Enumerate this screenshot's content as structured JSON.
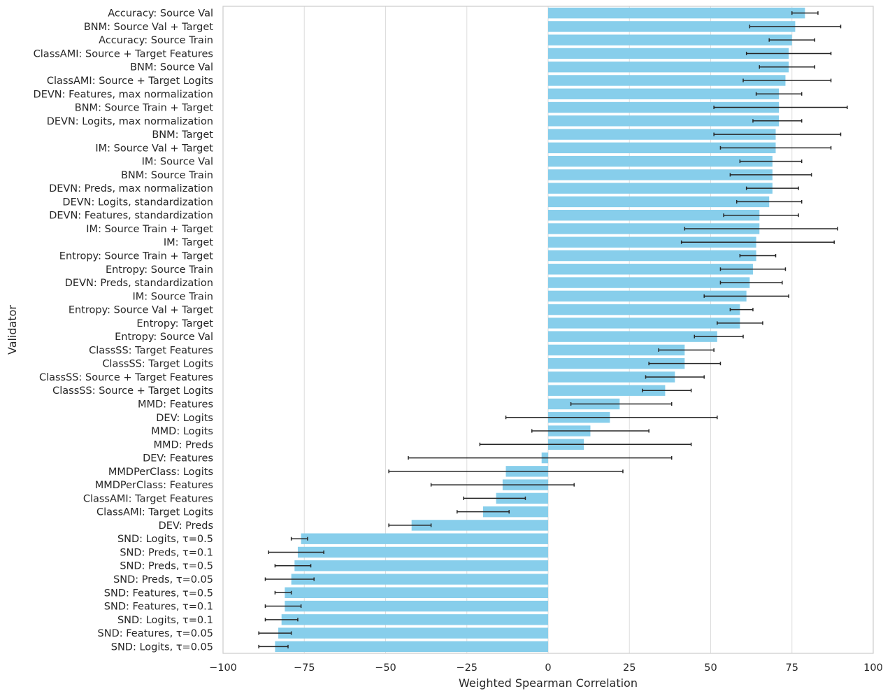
{
  "chart_data": {
    "type": "bar",
    "orientation": "horizontal",
    "xlabel": "Weighted Spearman Correlation",
    "ylabel": "Validator",
    "xlim": [
      -100,
      100
    ],
    "xticks": [
      -100,
      -75,
      -50,
      -25,
      0,
      25,
      50,
      75,
      100
    ],
    "grid": true,
    "bar_color": "#87ceeb",
    "errorbar_color": "#262626",
    "series": [
      {
        "label": "Accuracy: Source Val",
        "value": 79,
        "err_low": 75,
        "err_high": 83
      },
      {
        "label": "BNM: Source Val + Target",
        "value": 76,
        "err_low": 62,
        "err_high": 90
      },
      {
        "label": "Accuracy: Source Train",
        "value": 75,
        "err_low": 68,
        "err_high": 82
      },
      {
        "label": "ClassAMI: Source + Target Features",
        "value": 74,
        "err_low": 61,
        "err_high": 87
      },
      {
        "label": "BNM: Source Val",
        "value": 74,
        "err_low": 65,
        "err_high": 82
      },
      {
        "label": "ClassAMI: Source + Target Logits",
        "value": 73,
        "err_low": 60,
        "err_high": 87
      },
      {
        "label": "DEVN: Features, max normalization",
        "value": 71,
        "err_low": 64,
        "err_high": 78
      },
      {
        "label": "BNM: Source Train + Target",
        "value": 71,
        "err_low": 51,
        "err_high": 92
      },
      {
        "label": "DEVN: Logits, max normalization",
        "value": 71,
        "err_low": 63,
        "err_high": 78
      },
      {
        "label": "BNM: Target",
        "value": 70,
        "err_low": 51,
        "err_high": 90
      },
      {
        "label": "IM: Source Val + Target",
        "value": 70,
        "err_low": 53,
        "err_high": 87
      },
      {
        "label": "IM: Source Val",
        "value": 69,
        "err_low": 59,
        "err_high": 78
      },
      {
        "label": "BNM: Source Train",
        "value": 69,
        "err_low": 56,
        "err_high": 81
      },
      {
        "label": "DEVN: Preds, max normalization",
        "value": 69,
        "err_low": 61,
        "err_high": 77
      },
      {
        "label": "DEVN: Logits, standardization",
        "value": 68,
        "err_low": 58,
        "err_high": 78
      },
      {
        "label": "DEVN: Features, standardization",
        "value": 65,
        "err_low": 54,
        "err_high": 77
      },
      {
        "label": "IM: Source Train + Target",
        "value": 65,
        "err_low": 42,
        "err_high": 89
      },
      {
        "label": "IM: Target",
        "value": 64,
        "err_low": 41,
        "err_high": 88
      },
      {
        "label": "Entropy: Source Train + Target",
        "value": 64,
        "err_low": 59,
        "err_high": 70
      },
      {
        "label": "Entropy: Source Train",
        "value": 63,
        "err_low": 53,
        "err_high": 73
      },
      {
        "label": "DEVN: Preds, standardization",
        "value": 62,
        "err_low": 53,
        "err_high": 72
      },
      {
        "label": "IM: Source Train",
        "value": 61,
        "err_low": 48,
        "err_high": 74
      },
      {
        "label": "Entropy: Source Val + Target",
        "value": 59,
        "err_low": 56,
        "err_high": 63
      },
      {
        "label": "Entropy: Target",
        "value": 59,
        "err_low": 52,
        "err_high": 66
      },
      {
        "label": "Entropy: Source Val",
        "value": 52,
        "err_low": 45,
        "err_high": 60
      },
      {
        "label": "ClassSS: Target Features",
        "value": 42,
        "err_low": 34,
        "err_high": 51
      },
      {
        "label": "ClassSS: Target Logits",
        "value": 42,
        "err_low": 31,
        "err_high": 53
      },
      {
        "label": "ClassSS: Source + Target Features",
        "value": 39,
        "err_low": 30,
        "err_high": 48
      },
      {
        "label": "ClassSS: Source + Target Logits",
        "value": 36,
        "err_low": 29,
        "err_high": 44
      },
      {
        "label": "MMD: Features",
        "value": 22,
        "err_low": 7,
        "err_high": 38
      },
      {
        "label": "DEV: Logits",
        "value": 19,
        "err_low": -13,
        "err_high": 52
      },
      {
        "label": "MMD: Logits",
        "value": 13,
        "err_low": -5,
        "err_high": 31
      },
      {
        "label": "MMD: Preds",
        "value": 11,
        "err_low": -21,
        "err_high": 44
      },
      {
        "label": "DEV: Features",
        "value": -2,
        "err_low": -43,
        "err_high": 38
      },
      {
        "label": "MMDPerClass: Logits",
        "value": -13,
        "err_low": -49,
        "err_high": 23
      },
      {
        "label": "MMDPerClass: Features",
        "value": -14,
        "err_low": -36,
        "err_high": 8
      },
      {
        "label": "ClassAMI: Target Features",
        "value": -16,
        "err_low": -26,
        "err_high": -7
      },
      {
        "label": "ClassAMI: Target Logits",
        "value": -20,
        "err_low": -28,
        "err_high": -12
      },
      {
        "label": "DEV: Preds",
        "value": -42,
        "err_low": -49,
        "err_high": -36
      },
      {
        "label": "SND: Logits, τ=0.5",
        "value": -76,
        "err_low": -79,
        "err_high": -74
      },
      {
        "label": "SND: Preds, τ=0.1",
        "value": -77,
        "err_low": -86,
        "err_high": -69
      },
      {
        "label": "SND: Preds, τ=0.5",
        "value": -78,
        "err_low": -84,
        "err_high": -73
      },
      {
        "label": "SND: Preds, τ=0.05",
        "value": -79,
        "err_low": -87,
        "err_high": -72
      },
      {
        "label": "SND: Features, τ=0.5",
        "value": -81,
        "err_low": -84,
        "err_high": -79
      },
      {
        "label": "SND: Features, τ=0.1",
        "value": -81,
        "err_low": -87,
        "err_high": -76
      },
      {
        "label": "SND: Logits, τ=0.1",
        "value": -82,
        "err_low": -87,
        "err_high": -77
      },
      {
        "label": "SND: Features, τ=0.05",
        "value": -83,
        "err_low": -89,
        "err_high": -79
      },
      {
        "label": "SND: Logits, τ=0.05",
        "value": -84,
        "err_low": -89,
        "err_high": -80
      }
    ]
  }
}
